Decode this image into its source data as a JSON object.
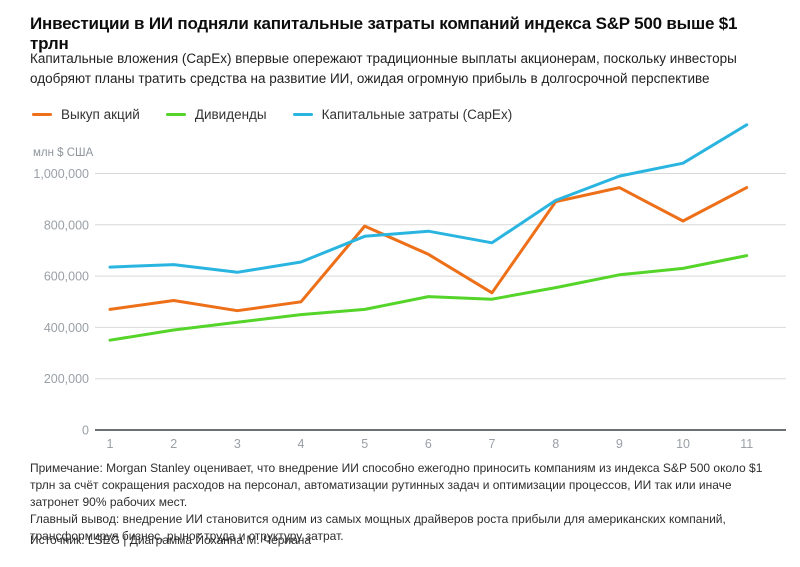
{
  "header": {
    "title": "Инвестиции в ИИ подняли капитальные затраты компаний индекса S&P 500 выше $1 трлн",
    "subtitle": "Капитальные вложения (CapEx) впервые опережают традиционные выплаты акционерам, поскольку инвесторы одобряют планы тратить средства на развитие ИИ, ожидая огромную прибыль в долгосрочной перспективе"
  },
  "chart_data": {
    "type": "line",
    "title": "",
    "xlabel": "",
    "ylabel": "млн $ США",
    "x": [
      1,
      2,
      3,
      4,
      5,
      6,
      7,
      8,
      9,
      10,
      11
    ],
    "series": [
      {
        "name": "Выкуп акций",
        "color": "#ed7019",
        "values": [
          470000,
          505000,
          465000,
          500000,
          795000,
          685000,
          535000,
          890000,
          945000,
          815000,
          945000
        ]
      },
      {
        "name": "Дивиденды",
        "color": "#55d42a",
        "values": [
          350000,
          390000,
          420000,
          450000,
          470000,
          520000,
          510000,
          555000,
          605000,
          630000,
          680000
        ]
      },
      {
        "name": "Капитальные затраты (CapEx)",
        "color": "#2ab5e0",
        "values": [
          635000,
          645000,
          615000,
          655000,
          755000,
          775000,
          730000,
          895000,
          990000,
          1040000,
          1190000
        ]
      }
    ],
    "yticks": [
      0,
      200000,
      400000,
      600000,
      800000,
      1000000
    ],
    "ylim": [
      0,
      1250000
    ],
    "grid": true,
    "legend_position": "top-left"
  },
  "colors": {
    "grid": "#d9d9d9",
    "axis": "#6b7177",
    "tick_text": "#9aa0a6"
  },
  "footnote": {
    "note": "Примечание: Morgan Stanley оценивает, что внедрение ИИ способно ежегодно приносить компаниям из индекса S&P 500 около $1 трлн за счёт сокращения расходов на персонал, автоматизации рутинных задач и оптимизации процессов, ИИ так или иначе затронет 90% рабочих мест.",
    "conclusion": "Главный вывод: внедрение ИИ становится одним из самых мощных драйверов роста прибыли для американских компаний, трансформируя бизнес, рынок труда и структуру затрат."
  },
  "source": "Источник: LSEG | Диаграмма Йоханна М. Чериана"
}
